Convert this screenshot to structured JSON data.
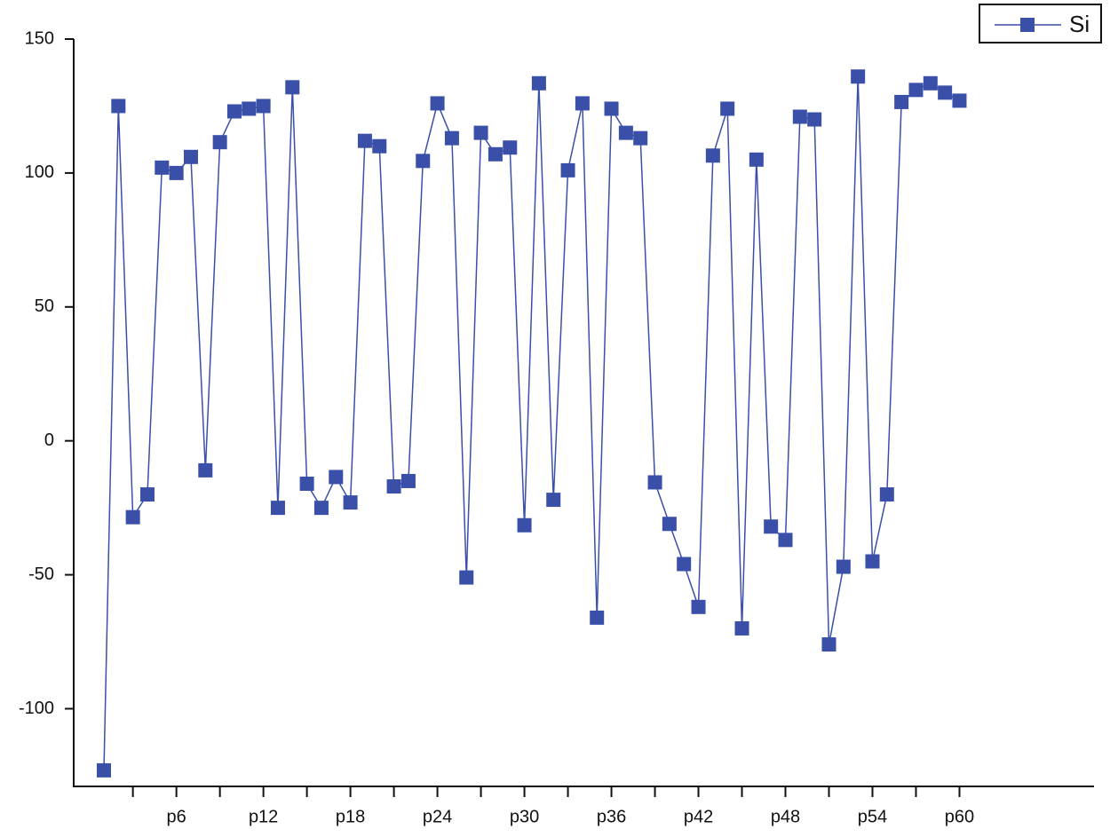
{
  "chart_data": {
    "type": "line",
    "categories": [
      null,
      null,
      null,
      null,
      null,
      "p6",
      null,
      null,
      null,
      null,
      null,
      "p12",
      null,
      null,
      null,
      null,
      null,
      "p18",
      null,
      null,
      null,
      null,
      null,
      "p24",
      null,
      null,
      null,
      null,
      null,
      "p30",
      null,
      null,
      null,
      null,
      null,
      "p36",
      null,
      null,
      null,
      null,
      null,
      "p42",
      null,
      null,
      null,
      null,
      null,
      "p48",
      null,
      null,
      null,
      null,
      null,
      "p54",
      null,
      null,
      null,
      null,
      null,
      "p60"
    ],
    "series": [
      {
        "name": "Si",
        "color": "#3a4fa8",
        "values": [
          -123,
          125,
          -28.5,
          -20,
          102,
          100,
          106,
          -11,
          111.5,
          123,
          124,
          125,
          -25,
          132,
          -16,
          -25,
          -13.5,
          -23,
          112,
          110,
          -17,
          -15,
          104.5,
          126,
          113,
          -51,
          115,
          107,
          109.5,
          -31.5,
          133.5,
          -22,
          101,
          126,
          -66,
          124,
          115,
          113,
          -15.5,
          -31,
          -46,
          -62,
          106.5,
          124,
          -70,
          105,
          -32,
          -37,
          121,
          120,
          -76,
          -47,
          136,
          -45,
          -20,
          126.5,
          131,
          133.5,
          130,
          127
        ]
      }
    ],
    "ylim": [
      -129,
      150
    ],
    "yticks": [
      150,
      100,
      50,
      0,
      -50,
      -100
    ],
    "grid": false,
    "legend": "top-right"
  }
}
